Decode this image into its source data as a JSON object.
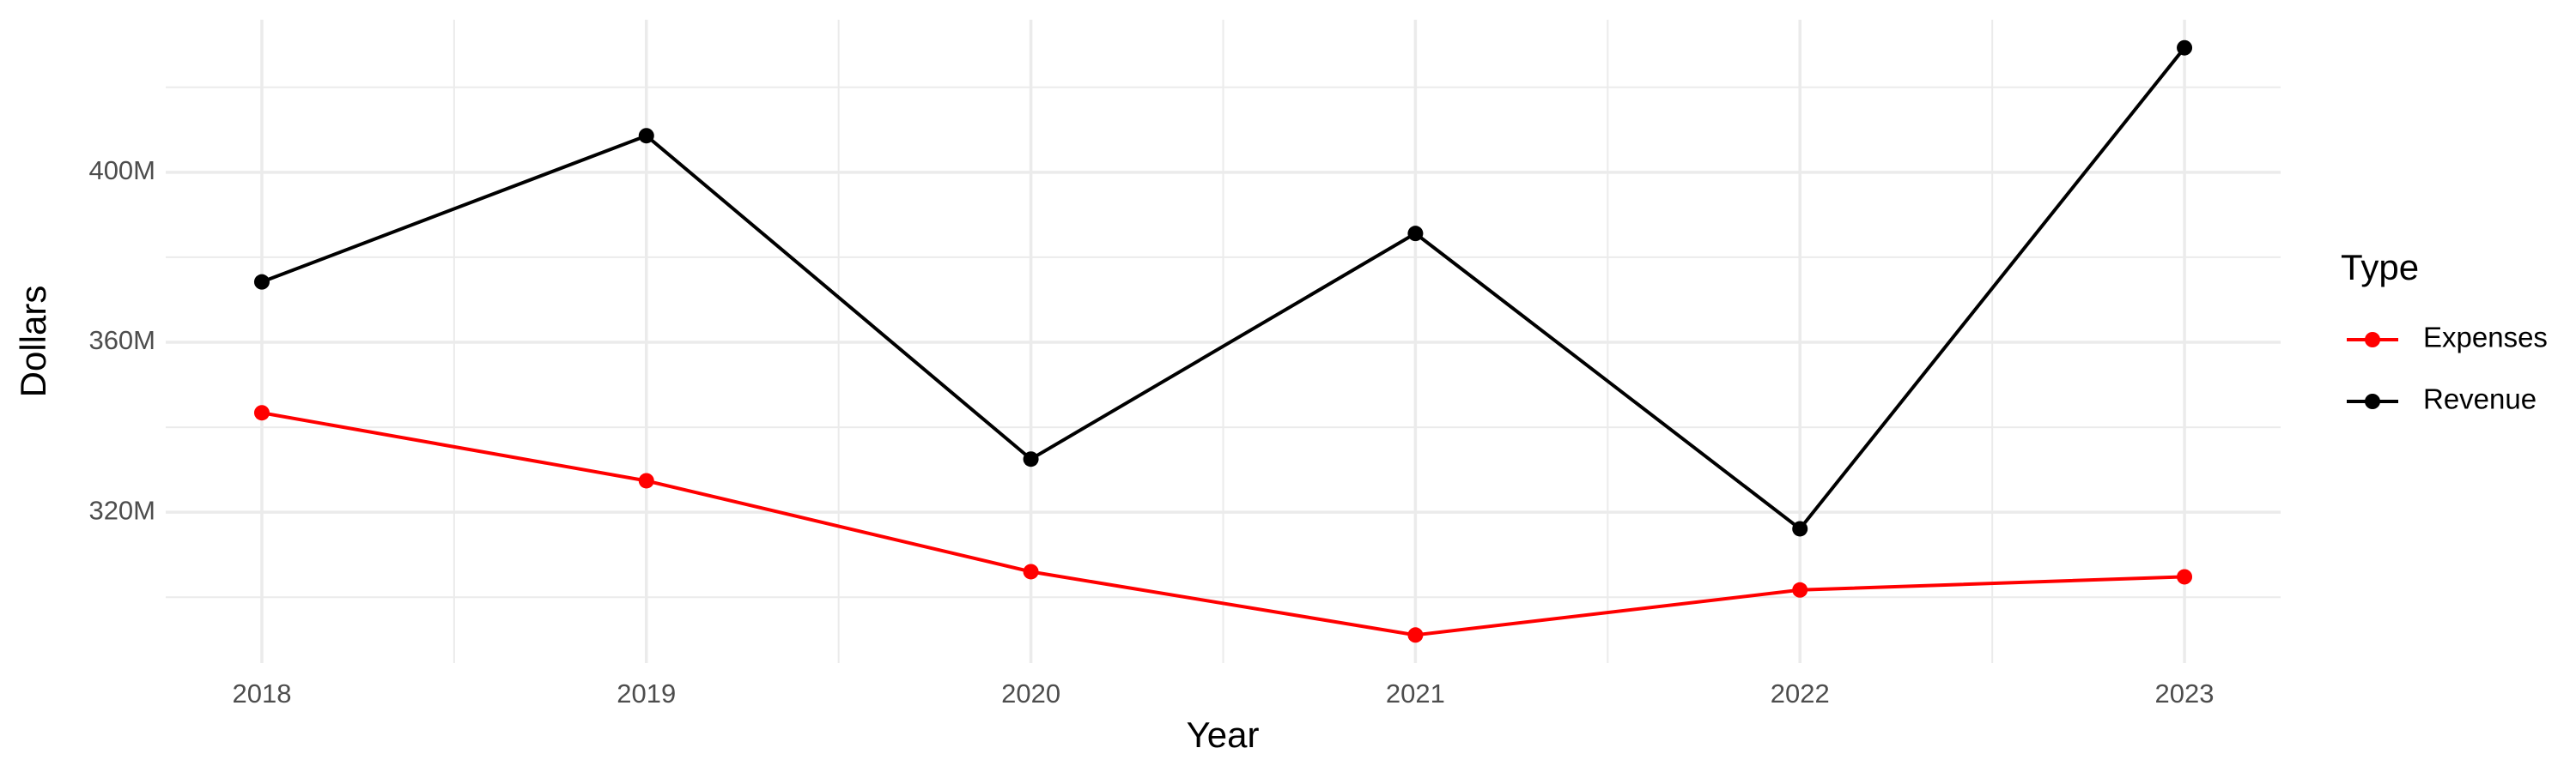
{
  "chart_data": {
    "type": "line",
    "x_label": "Year",
    "y_label": "Dollars",
    "legend_title": "Type",
    "x": [
      2018,
      2019,
      2020,
      2021,
      2022,
      2023
    ],
    "series": [
      {
        "name": "Expenses",
        "color": "#ff0000",
        "values": [
          343400000,
          327400000,
          306000000,
          291100000,
          301700000,
          304800000
        ]
      },
      {
        "name": "Revenue",
        "color": "#000000",
        "values": [
          374200000,
          408600000,
          332500000,
          385600000,
          316100000,
          429300000
        ]
      }
    ],
    "xlim": [
      2017.75,
      2023.25
    ],
    "xticks": [
      2018,
      2019,
      2020,
      2021,
      2022,
      2023
    ],
    "ylim": [
      284500000,
      435900000
    ],
    "yticks": [
      {
        "value": 320000000,
        "label": "320M"
      },
      {
        "value": 360000000,
        "label": "360M"
      },
      {
        "value": 400000000,
        "label": "400M"
      }
    ],
    "grid": true,
    "legend": "right"
  }
}
